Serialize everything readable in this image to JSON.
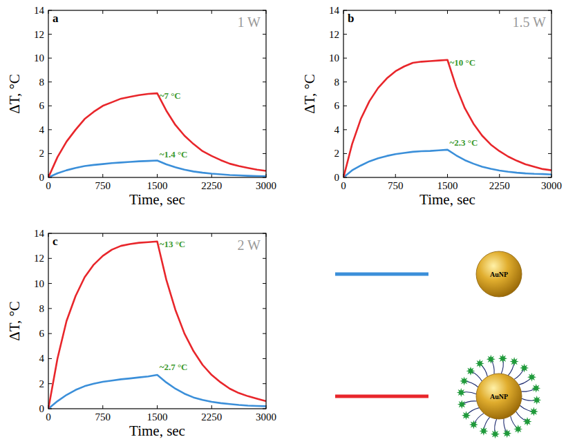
{
  "chart_data": [
    {
      "type": "line",
      "label": "a",
      "title": "1 W",
      "xlabel": "Time, sec",
      "ylabel": "ΔT, °C",
      "x": [
        0,
        125,
        250,
        375,
        500,
        625,
        750,
        875,
        1000,
        1125,
        1250,
        1375,
        1500,
        1625,
        1750,
        1875,
        2000,
        2125,
        2250,
        2375,
        2500,
        2625,
        2750,
        2875,
        3000
      ],
      "xlim": [
        0,
        3000
      ],
      "xticks": [
        0,
        750,
        1500,
        2250,
        3000
      ],
      "ylim": [
        0,
        14
      ],
      "yticks": [
        0,
        2,
        4,
        6,
        8,
        10,
        12,
        14
      ],
      "grid": false,
      "series": [
        {
          "name": "AuNP",
          "color": "#3b8fd9",
          "values": [
            0,
            0.35,
            0.6,
            0.8,
            0.95,
            1.05,
            1.12,
            1.2,
            1.25,
            1.3,
            1.35,
            1.38,
            1.42,
            1.1,
            0.85,
            0.65,
            0.5,
            0.4,
            0.32,
            0.26,
            0.2,
            0.17,
            0.14,
            0.12,
            0.1
          ]
        },
        {
          "name": "AuNP",
          "color": "#e8262b",
          "values": [
            0,
            1.7,
            3.0,
            4.0,
            4.9,
            5.5,
            6.0,
            6.3,
            6.6,
            6.75,
            6.9,
            7.0,
            7.05,
            5.6,
            4.4,
            3.5,
            2.8,
            2.2,
            1.8,
            1.45,
            1.15,
            0.95,
            0.8,
            0.65,
            0.55
          ]
        }
      ],
      "annotations": [
        {
          "text": "~7 °C",
          "x": 1530,
          "y": 6.8
        },
        {
          "text": "~1.4 °C",
          "x": 1530,
          "y": 1.9
        }
      ]
    },
    {
      "type": "line",
      "label": "b",
      "title": "1.5 W",
      "xlabel": "Time, sec",
      "ylabel": "ΔT, °C",
      "x": [
        0,
        125,
        250,
        375,
        500,
        625,
        750,
        875,
        1000,
        1125,
        1250,
        1375,
        1500,
        1625,
        1750,
        1875,
        2000,
        2125,
        2250,
        2375,
        2500,
        2625,
        2750,
        2875,
        3000
      ],
      "xlim": [
        0,
        3000
      ],
      "xticks": [
        0,
        750,
        1500,
        2250,
        3000
      ],
      "ylim": [
        0,
        14
      ],
      "yticks": [
        0,
        2,
        4,
        6,
        8,
        10,
        12,
        14
      ],
      "grid": false,
      "series": [
        {
          "color": "#3b8fd9",
          "values": [
            0,
            0.6,
            1.0,
            1.35,
            1.6,
            1.8,
            1.95,
            2.05,
            2.15,
            2.2,
            2.22,
            2.27,
            2.32,
            1.85,
            1.45,
            1.15,
            0.9,
            0.72,
            0.58,
            0.48,
            0.4,
            0.34,
            0.3,
            0.28,
            0.25
          ]
        },
        {
          "color": "#e8262b",
          "values": [
            0,
            2.8,
            4.9,
            6.4,
            7.5,
            8.3,
            8.9,
            9.3,
            9.6,
            9.7,
            9.75,
            9.8,
            9.85,
            7.6,
            5.8,
            4.5,
            3.5,
            2.75,
            2.2,
            1.75,
            1.4,
            1.1,
            0.9,
            0.7,
            0.6
          ]
        }
      ],
      "annotations": [
        {
          "text": "~10 °C",
          "x": 1530,
          "y": 9.6
        },
        {
          "text": "~2.3 °C",
          "x": 1530,
          "y": 2.9
        }
      ]
    },
    {
      "type": "line",
      "label": "c",
      "title": "2 W",
      "xlabel": "Time, sec",
      "ylabel": "ΔT, °C",
      "x": [
        0,
        125,
        250,
        375,
        500,
        625,
        750,
        875,
        1000,
        1125,
        1250,
        1375,
        1500,
        1625,
        1750,
        1875,
        2000,
        2125,
        2250,
        2375,
        2500,
        2625,
        2750,
        2875,
        3000
      ],
      "xlim": [
        0,
        3000
      ],
      "xticks": [
        0,
        750,
        1500,
        2250,
        3000
      ],
      "ylim": [
        0,
        14
      ],
      "yticks": [
        0,
        2,
        4,
        6,
        8,
        10,
        12,
        14
      ],
      "grid": false,
      "series": [
        {
          "color": "#3b8fd9",
          "values": [
            0,
            0.6,
            1.1,
            1.5,
            1.8,
            2.0,
            2.15,
            2.25,
            2.35,
            2.42,
            2.5,
            2.58,
            2.7,
            2.1,
            1.6,
            1.2,
            0.9,
            0.7,
            0.55,
            0.45,
            0.37,
            0.3,
            0.25,
            0.22,
            0.2
          ]
        },
        {
          "color": "#e8262b",
          "values": [
            0,
            4.0,
            7.0,
            9.0,
            10.5,
            11.5,
            12.2,
            12.7,
            13.0,
            13.15,
            13.25,
            13.3,
            13.35,
            10.3,
            7.9,
            6.0,
            4.6,
            3.5,
            2.7,
            2.1,
            1.6,
            1.25,
            1.0,
            0.8,
            0.6
          ]
        }
      ],
      "annotations": [
        {
          "text": "~13 °C",
          "x": 1530,
          "y": 13.1
        },
        {
          "text": "~2.7 °C",
          "x": 1530,
          "y": 3.3
        }
      ]
    }
  ]
}
